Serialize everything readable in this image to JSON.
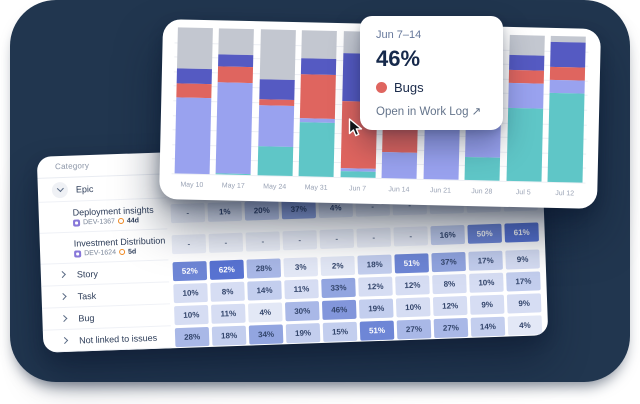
{
  "background": {
    "color": "#21364F"
  },
  "chart_data": {
    "type": "bar",
    "stacked": true,
    "categories": [
      "May 10",
      "May 17",
      "May 24",
      "May 31",
      "Jun 7",
      "Jun 14",
      "Jun 21",
      "Jun 28",
      "Jul 5",
      "Jul 12"
    ],
    "series": [
      {
        "name": "Epic",
        "color": "#5FC6C7",
        "values": [
          0,
          1,
          20,
          37,
          4,
          0,
          0,
          16,
          50,
          61
        ]
      },
      {
        "name": "Story",
        "color": "#99A2EF",
        "values": [
          52,
          62,
          28,
          3,
          2,
          18,
          51,
          37,
          17,
          9
        ]
      },
      {
        "name": "Bugs",
        "color": "#DF655F",
        "values": [
          10,
          11,
          4,
          30,
          46,
          19,
          10,
          12,
          9,
          9
        ]
      },
      {
        "name": "Task",
        "color": "#555AC2",
        "values": [
          10,
          8,
          14,
          11,
          33,
          12,
          12,
          8,
          10,
          17
        ]
      },
      {
        "name": "Not linked to issues",
        "color": "#C3C7D0",
        "values": [
          28,
          18,
          34,
          19,
          15,
          51,
          27,
          27,
          14,
          4
        ]
      }
    ],
    "ylim": [
      0,
      100
    ],
    "grid": true,
    "legend_position": "none",
    "title": ""
  },
  "tooltip": {
    "date_range": "Jun 7–14",
    "value": "46%",
    "series": "Bugs",
    "dot_color": "#DF655F",
    "link": "Open in Work Log",
    "arrow": "↗"
  },
  "table": {
    "header": "Category",
    "rows": [
      {
        "kind": "group",
        "label": "Epic",
        "expanded": true,
        "cells": []
      },
      {
        "kind": "child",
        "label": "Deployment insights",
        "key": "DEV-1367",
        "duration": "44d",
        "cells": [
          "-",
          "1%",
          "20%",
          "37%",
          "4%",
          "-",
          "-",
          "-",
          "-",
          "-"
        ]
      },
      {
        "kind": "child",
        "label": "Investment Distribution",
        "key": "DEV-1624",
        "duration": "5d",
        "cells": [
          "-",
          "-",
          "-",
          "-",
          "-",
          "-",
          "-",
          "16%",
          "50%",
          "61%"
        ]
      },
      {
        "kind": "group",
        "label": "Story",
        "expanded": false,
        "cells": [
          "52%",
          "62%",
          "28%",
          "3%",
          "2%",
          "18%",
          "51%",
          "37%",
          "17%",
          "9%"
        ]
      },
      {
        "kind": "group",
        "label": "Task",
        "expanded": false,
        "cells": [
          "10%",
          "8%",
          "14%",
          "11%",
          "33%",
          "12%",
          "12%",
          "8%",
          "10%",
          "17%"
        ]
      },
      {
        "kind": "group",
        "label": "Bug",
        "expanded": false,
        "cells": [
          "10%",
          "11%",
          "4%",
          "30%",
          "46%",
          "19%",
          "10%",
          "12%",
          "9%",
          "9%"
        ]
      },
      {
        "kind": "group",
        "label": "Not linked to issues",
        "expanded": false,
        "cells": [
          "28%",
          "18%",
          "34%",
          "19%",
          "15%",
          "51%",
          "27%",
          "27%",
          "14%",
          "4%"
        ]
      }
    ]
  }
}
